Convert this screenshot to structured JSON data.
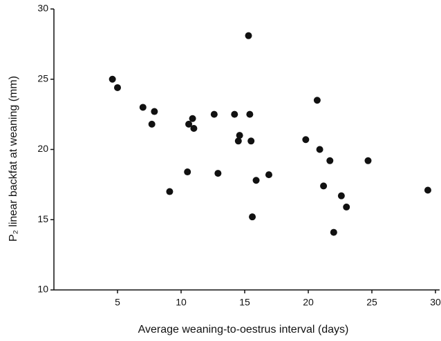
{
  "chart_data": {
    "type": "scatter",
    "xlabel": "Average weaning-to-oestrus interval (days)",
    "ylabel": "P₂ linear backfat at weaning (mm)",
    "x": [
      4.6,
      5.0,
      7.0,
      7.9,
      7.7,
      9.1,
      10.5,
      10.6,
      10.9,
      11.0,
      12.6,
      12.9,
      14.2,
      14.5,
      14.6,
      15.3,
      15.4,
      15.5,
      15.6,
      15.9,
      16.9,
      19.8,
      20.7,
      20.9,
      21.2,
      21.7,
      22.0,
      22.6,
      23.0,
      24.7,
      29.4
    ],
    "values": [
      25.0,
      24.4,
      23.0,
      22.7,
      21.8,
      17.0,
      18.4,
      21.8,
      22.2,
      21.5,
      22.5,
      18.3,
      22.5,
      20.6,
      21.0,
      28.1,
      22.5,
      20.6,
      15.2,
      17.8,
      18.2,
      20.7,
      23.5,
      20.0,
      17.4,
      19.2,
      14.1,
      16.7,
      15.9,
      19.2,
      17.1
    ],
    "color": "#111111",
    "xlim": [
      0,
      30
    ],
    "xticks": [
      5,
      10,
      15,
      20,
      25,
      30
    ],
    "ylim": [
      10,
      30
    ],
    "yticks": [
      10,
      15,
      20,
      25,
      30
    ],
    "grid": false
  }
}
